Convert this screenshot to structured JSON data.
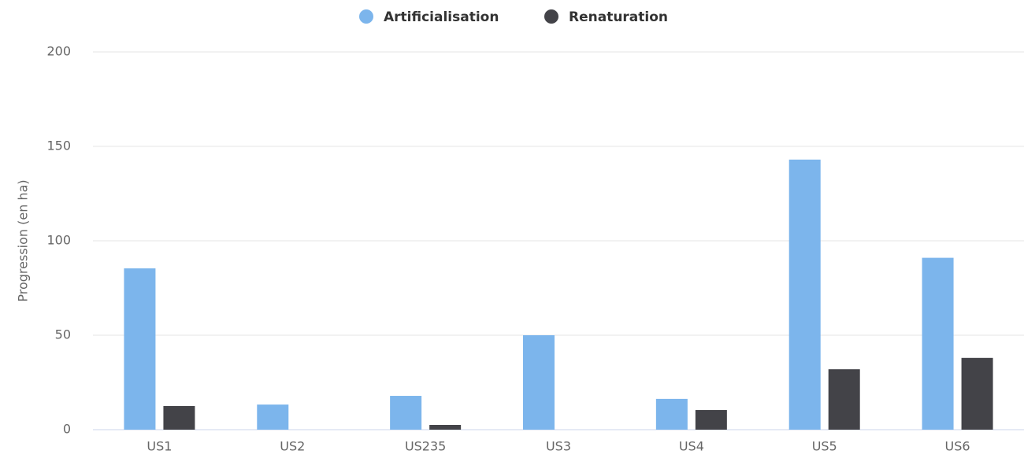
{
  "chart_data": {
    "type": "bar",
    "y_label": "Progression (en ha)",
    "categories": [
      "US1",
      "US2",
      "US235",
      "US3",
      "US4",
      "US5",
      "US6"
    ],
    "series": [
      {
        "name": "Artificialisation",
        "color": "#7cb5ec",
        "values": [
          85.4,
          13.3,
          17.9,
          50,
          16.3,
          143,
          91
        ]
      },
      {
        "name": "Renaturation",
        "color": "#434348",
        "values": [
          12.5,
          0,
          2.5,
          0,
          10.4,
          32,
          38
        ]
      }
    ],
    "ylim": [
      0,
      200
    ],
    "yticks": [
      0,
      50,
      100,
      150,
      200
    ],
    "grid": true
  }
}
